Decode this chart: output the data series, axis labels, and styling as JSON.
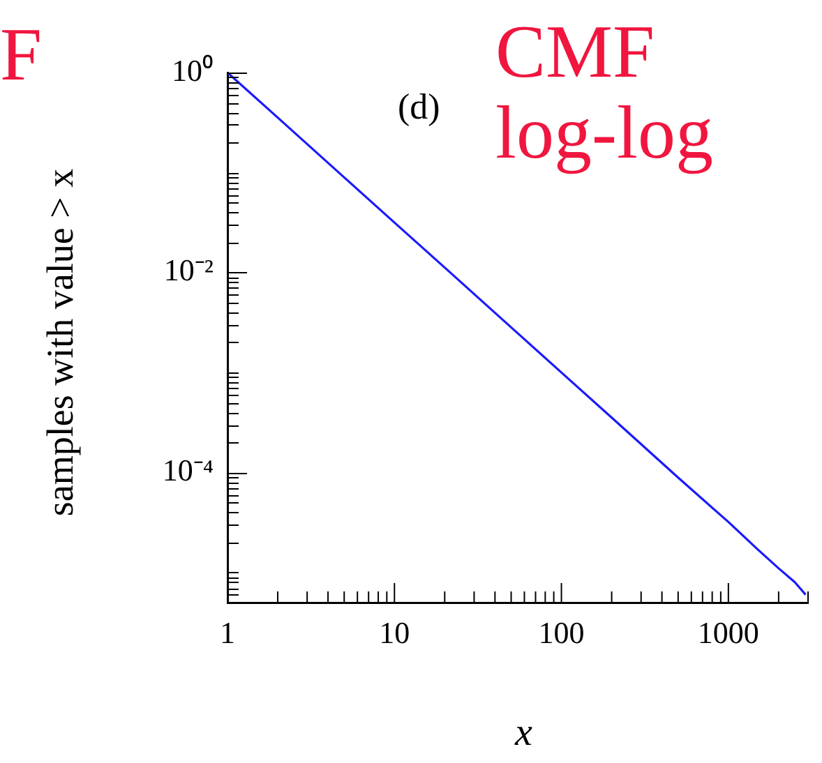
{
  "chart_data": {
    "type": "line",
    "xlabel": "x",
    "ylabel": "samples with value > x",
    "log": "xy",
    "xlim": [
      1,
      3000
    ],
    "ylim": [
      5e-06,
      1
    ],
    "xticks": [
      1,
      {
        "value": 2,
        "label": null
      },
      {
        "value": 3,
        "label": null
      },
      {
        "value": 4,
        "label": null
      },
      {
        "value": 5,
        "label": null
      },
      {
        "value": 6,
        "label": null
      },
      {
        "value": 7,
        "label": null
      },
      {
        "value": 8,
        "label": null
      },
      {
        "value": 9,
        "label": null
      },
      10,
      {
        "value": 20,
        "label": null
      },
      {
        "value": 30,
        "label": null
      },
      {
        "value": 40,
        "label": null
      },
      {
        "value": 50,
        "label": null
      },
      {
        "value": 60,
        "label": null
      },
      {
        "value": 70,
        "label": null
      },
      {
        "value": 80,
        "label": null
      },
      {
        "value": 90,
        "label": null
      },
      100,
      {
        "value": 200,
        "label": null
      },
      {
        "value": 300,
        "label": null
      },
      {
        "value": 400,
        "label": null
      },
      {
        "value": 500,
        "label": null
      },
      {
        "value": 600,
        "label": null
      },
      {
        "value": 700,
        "label": null
      },
      {
        "value": 800,
        "label": null
      },
      {
        "value": 900,
        "label": null
      },
      1000,
      {
        "value": 2000,
        "label": null
      },
      {
        "value": 3000,
        "label": null
      }
    ],
    "yticks": [
      {
        "value": 1,
        "label": "10⁰"
      },
      {
        "value": 0.9,
        "label": null
      },
      {
        "value": 0.8,
        "label": null
      },
      {
        "value": 0.7,
        "label": null
      },
      {
        "value": 0.6,
        "label": null
      },
      {
        "value": 0.5,
        "label": null
      },
      {
        "value": 0.4,
        "label": null
      },
      {
        "value": 0.3,
        "label": null
      },
      {
        "value": 0.2,
        "label": null
      },
      {
        "value": 0.1,
        "label": null
      },
      {
        "value": 0.09,
        "label": null
      },
      {
        "value": 0.08,
        "label": null
      },
      {
        "value": 0.07,
        "label": null
      },
      {
        "value": 0.06,
        "label": null
      },
      {
        "value": 0.05,
        "label": null
      },
      {
        "value": 0.04,
        "label": null
      },
      {
        "value": 0.03,
        "label": null
      },
      {
        "value": 0.02,
        "label": null
      },
      {
        "value": 0.01,
        "label": "10⁻²"
      },
      {
        "value": 0.009,
        "label": null
      },
      {
        "value": 0.008,
        "label": null
      },
      {
        "value": 0.007,
        "label": null
      },
      {
        "value": 0.006,
        "label": null
      },
      {
        "value": 0.005,
        "label": null
      },
      {
        "value": 0.004,
        "label": null
      },
      {
        "value": 0.003,
        "label": null
      },
      {
        "value": 0.002,
        "label": null
      },
      {
        "value": 0.001,
        "label": null
      },
      {
        "value": 0.0009,
        "label": null
      },
      {
        "value": 0.0008,
        "label": null
      },
      {
        "value": 0.0007,
        "label": null
      },
      {
        "value": 0.0006,
        "label": null
      },
      {
        "value": 0.0005,
        "label": null
      },
      {
        "value": 0.0004,
        "label": null
      },
      {
        "value": 0.0003,
        "label": null
      },
      {
        "value": 0.0002,
        "label": null
      },
      {
        "value": 0.0001,
        "label": "10⁻⁴"
      },
      {
        "value": 9e-05,
        "label": null
      },
      {
        "value": 8e-05,
        "label": null
      },
      {
        "value": 7e-05,
        "label": null
      },
      {
        "value": 6e-05,
        "label": null
      },
      {
        "value": 5e-05,
        "label": null
      },
      {
        "value": 4e-05,
        "label": null
      },
      {
        "value": 3e-05,
        "label": null
      },
      {
        "value": 2e-05,
        "label": null
      },
      {
        "value": 1e-05,
        "label": null
      },
      {
        "value": 9e-06,
        "label": null
      },
      {
        "value": 8e-06,
        "label": null
      },
      {
        "value": 7e-06,
        "label": null
      },
      {
        "value": 6e-06,
        "label": null
      }
    ],
    "x": [
      1,
      2,
      5,
      10,
      20,
      50,
      100,
      200,
      500,
      1000,
      1500,
      2000,
      2500,
      2900
    ],
    "series": [
      {
        "color": "#1a1aff",
        "values": [
          1,
          0.354,
          0.0894,
          0.0316,
          0.0112,
          0.00283,
          0.001,
          0.000354,
          8.9e-05,
          3.2e-05,
          1.7e-05,
          1.1e-05,
          8e-06,
          6e-06
        ]
      }
    ],
    "annotations": [
      "(d)",
      "CMF log-log",
      "F"
    ],
    "legend": false,
    "grid": false
  }
}
